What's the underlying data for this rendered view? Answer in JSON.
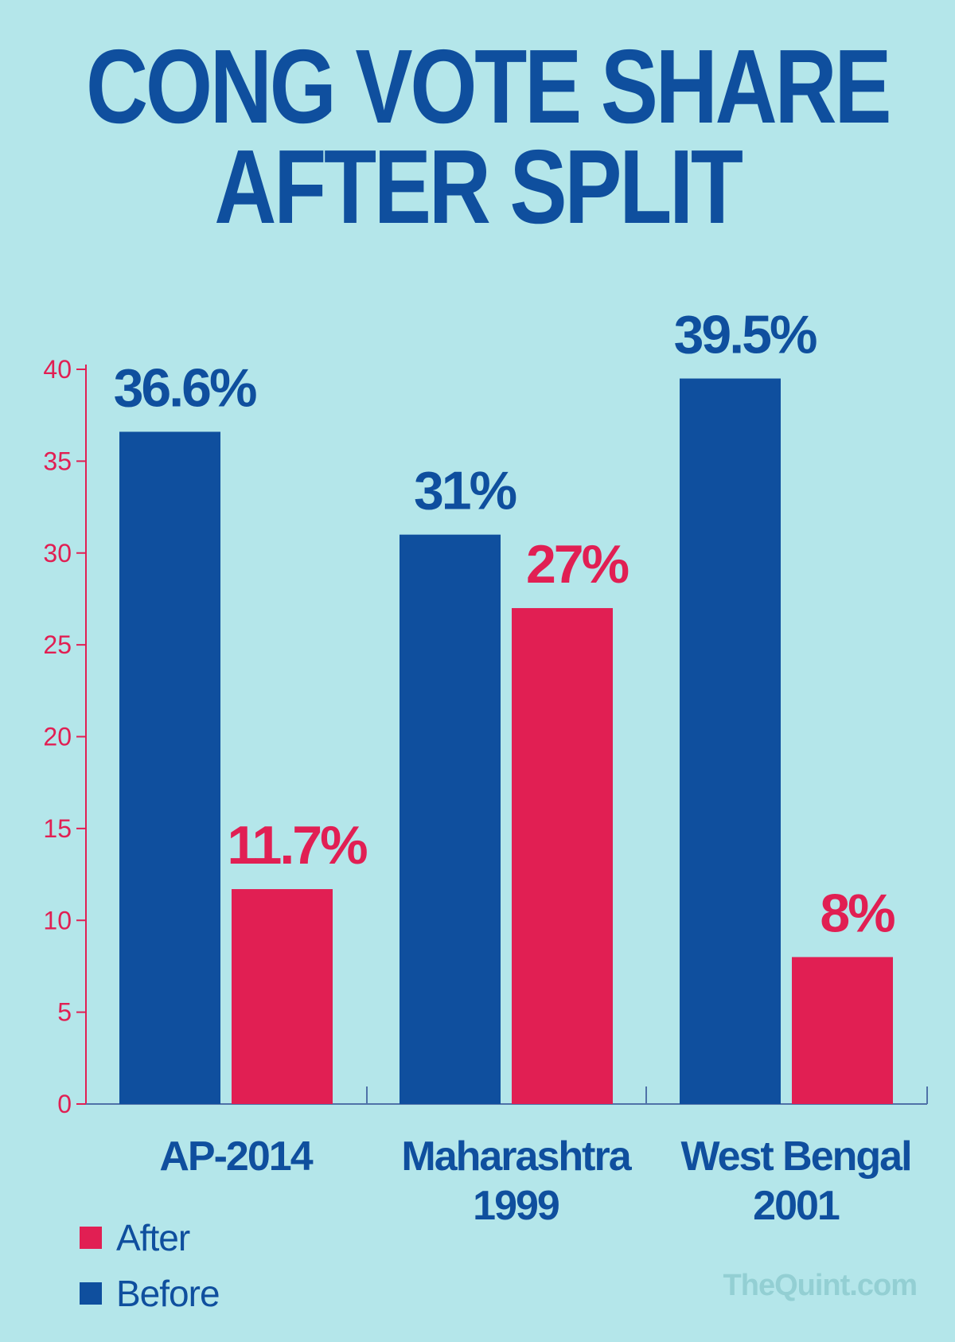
{
  "colors": {
    "before": "#0f4f9e",
    "after": "#e11f53",
    "axis": "#e11f53",
    "title": "#0f4f9e",
    "watermark": "#93cfd3"
  },
  "title": {
    "line1": "CONG VOTE SHARE",
    "line2": "AFTER SPLIT"
  },
  "legend": {
    "items": [
      {
        "label": "After",
        "color": "#e11f53"
      },
      {
        "label": "Before",
        "color": "#0f4f9e"
      }
    ]
  },
  "watermark": "TheQuint.com",
  "chart_data": {
    "type": "bar",
    "title": "CONG VOTE SHARE AFTER SPLIT",
    "xlabel": "",
    "ylabel": "",
    "ylim": [
      0,
      40
    ],
    "yticks": [
      0,
      5,
      10,
      15,
      20,
      25,
      30,
      35,
      40
    ],
    "categories": [
      {
        "lines": [
          "AP-2014"
        ]
      },
      {
        "lines": [
          "Maharashtra",
          "1999"
        ]
      },
      {
        "lines": [
          "West Bengal",
          "2001"
        ]
      }
    ],
    "series": [
      {
        "name": "Before",
        "color": "#0f4f9e",
        "values": [
          36.6,
          31,
          39.5
        ],
        "labels": [
          "36.6%",
          "31%",
          "39.5%"
        ]
      },
      {
        "name": "After",
        "color": "#e11f53",
        "values": [
          11.7,
          27,
          8
        ],
        "labels": [
          "11.7%",
          "27%",
          "8%"
        ]
      }
    ],
    "legend": "bottom-left",
    "grid": false
  }
}
